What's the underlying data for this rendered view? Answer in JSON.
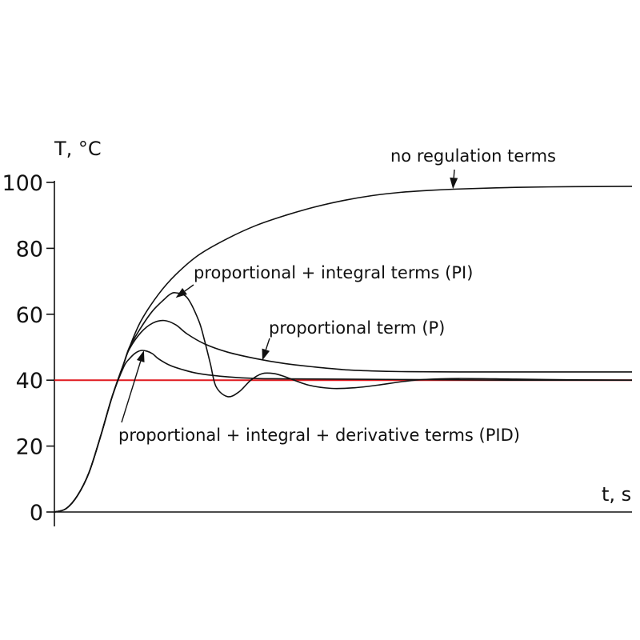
{
  "chart_data": {
    "type": "line",
    "title": "",
    "ylabel": "T, °C",
    "xlabel": "t, s",
    "ylim": [
      0,
      100
    ],
    "xlim": [
      0,
      100
    ],
    "yticks": [
      "0",
      "20",
      "40",
      "60",
      "80",
      "100"
    ],
    "grid": false,
    "setpoint": {
      "value": 40,
      "color": "#e0191f"
    },
    "series": [
      {
        "name": "no regulation terms",
        "x": [
          0,
          2,
          4,
          6,
          8,
          10,
          12,
          13,
          15,
          18,
          21,
          25,
          30,
          35,
          40,
          45,
          50,
          55,
          60,
          65,
          70,
          80,
          90,
          100
        ],
        "y": [
          0,
          1,
          5,
          12,
          23,
          35,
          45,
          50,
          58,
          66,
          72,
          78,
          83,
          87,
          90,
          92.5,
          94.5,
          96,
          97,
          97.6,
          98,
          98.5,
          98.7,
          98.8
        ]
      },
      {
        "name": "proportional + integral terms (PI)",
        "x": [
          0,
          2,
          4,
          6,
          8,
          10,
          12,
          13,
          15,
          17,
          19,
          20,
          21,
          23,
          25,
          26,
          27,
          28,
          30,
          32,
          34,
          36,
          38,
          40,
          44,
          48,
          52,
          56,
          60,
          64,
          70,
          80,
          90,
          100
        ],
        "y": [
          0,
          1,
          5,
          12,
          23,
          35,
          45,
          50,
          56,
          61,
          64.5,
          66,
          66.5,
          65,
          58,
          52,
          45,
          38,
          35,
          36.5,
          40,
          42,
          42,
          41,
          38.5,
          37.5,
          37.7,
          38.5,
          39.5,
          40.2,
          40.5,
          40.3,
          40.1,
          40
        ]
      },
      {
        "name": "proportional term (P)",
        "x": [
          0,
          2,
          4,
          6,
          8,
          10,
          12,
          13,
          15,
          17,
          19,
          21,
          23,
          26,
          30,
          35,
          40,
          45,
          50,
          55,
          60,
          70,
          80,
          90,
          100
        ],
        "y": [
          0,
          1,
          5,
          12,
          23,
          35,
          45,
          49.5,
          54.5,
          57.3,
          58.1,
          56.8,
          54,
          51,
          48.5,
          46.5,
          45,
          44,
          43.2,
          42.8,
          42.6,
          42.5,
          42.5,
          42.5,
          42.5
        ]
      },
      {
        "name": "proportional + integral + derivative terms (PID)",
        "x": [
          0,
          2,
          4,
          6,
          8,
          10,
          12,
          13,
          14,
          15,
          16,
          17,
          18,
          20,
          22,
          25,
          30,
          35,
          40,
          50,
          60,
          70,
          80,
          100
        ],
        "y": [
          0,
          1,
          5,
          12,
          23,
          35,
          44,
          46.5,
          48.2,
          49,
          48.8,
          48,
          46.5,
          44.5,
          43.3,
          42,
          41,
          40.5,
          40.4,
          40.3,
          40.2,
          40.1,
          40,
          40
        ]
      }
    ],
    "annotations": [
      {
        "text": "no regulation terms",
        "series": 0,
        "x": 69,
        "y": 98
      },
      {
        "text": "proportional + integral terms (PI)",
        "series": 1,
        "x": 21,
        "y": 65
      },
      {
        "text": "proportional term (P)",
        "series": 2,
        "x": 36,
        "y": 46
      },
      {
        "text": "proportional + integral + derivative terms (PID)",
        "series": 3,
        "x": 15.5,
        "y": 49
      }
    ]
  }
}
